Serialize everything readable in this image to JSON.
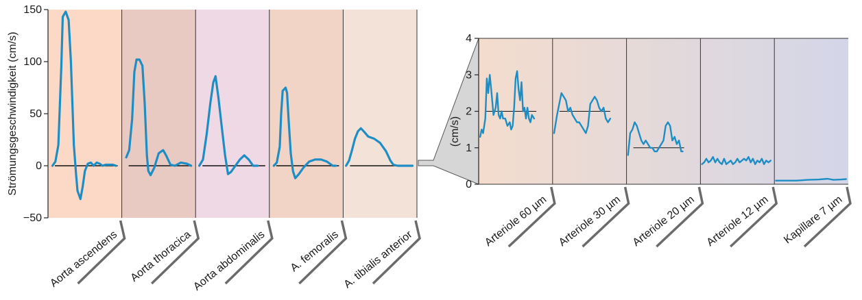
{
  "colors": {
    "trace": "#1e8dc4",
    "baseline": "#111111",
    "divider": "#333333",
    "label_bracket": "#6b6b6b",
    "zoom_wedge": "#d6d6d6",
    "panel_bg": [
      "#fbd9c6",
      "#e8cac2",
      "#efd9e4",
      "#f1d4c6",
      "#f3e2d8"
    ],
    "right_bg_start": "#f4dccd",
    "right_bg_end": "#d3d6e8"
  },
  "chart_data": [
    {
      "type": "line",
      "title": "",
      "ylabel": "Strömungsgeschwindigkeit (cm/s)",
      "ylim": [
        -50,
        150
      ],
      "yticks": [
        "150",
        "100",
        "50",
        "0",
        "−50"
      ],
      "ytick_values": [
        150,
        100,
        50,
        0,
        -50
      ],
      "grid": false,
      "x_unit": "fraction of panel width",
      "panels": [
        {
          "label": "Aorta ascendens",
          "points": [
            [
              0.06,
              0
            ],
            [
              0.1,
              4
            ],
            [
              0.14,
              20
            ],
            [
              0.18,
              95
            ],
            [
              0.2,
              143
            ],
            [
              0.24,
              148
            ],
            [
              0.28,
              140
            ],
            [
              0.31,
              100
            ],
            [
              0.35,
              20
            ],
            [
              0.38,
              -8
            ],
            [
              0.4,
              -24
            ],
            [
              0.44,
              -32
            ],
            [
              0.47,
              -20
            ],
            [
              0.5,
              -5
            ],
            [
              0.54,
              2
            ],
            [
              0.58,
              3
            ],
            [
              0.62,
              0
            ],
            [
              0.66,
              3
            ],
            [
              0.7,
              2
            ],
            [
              0.74,
              0
            ],
            [
              0.78,
              1
            ],
            [
              0.82,
              1
            ],
            [
              0.88,
              1
            ],
            [
              0.92,
              0
            ]
          ]
        },
        {
          "label": "Aorta thoracica",
          "points": [
            [
              0.06,
              8
            ],
            [
              0.1,
              15
            ],
            [
              0.14,
              45
            ],
            [
              0.17,
              90
            ],
            [
              0.2,
              102
            ],
            [
              0.24,
              102
            ],
            [
              0.28,
              96
            ],
            [
              0.31,
              60
            ],
            [
              0.34,
              10
            ],
            [
              0.36,
              -5
            ],
            [
              0.39,
              -9
            ],
            [
              0.44,
              -2
            ],
            [
              0.5,
              12
            ],
            [
              0.56,
              15
            ],
            [
              0.6,
              10
            ],
            [
              0.66,
              1
            ],
            [
              0.72,
              0
            ],
            [
              0.8,
              3
            ],
            [
              0.88,
              2
            ],
            [
              0.94,
              0
            ]
          ]
        },
        {
          "label": "Aorta abdominalis",
          "points": [
            [
              0.05,
              0
            ],
            [
              0.1,
              6
            ],
            [
              0.15,
              30
            ],
            [
              0.2,
              60
            ],
            [
              0.24,
              80
            ],
            [
              0.27,
              86
            ],
            [
              0.31,
              65
            ],
            [
              0.35,
              40
            ],
            [
              0.4,
              10
            ],
            [
              0.44,
              -8
            ],
            [
              0.48,
              -6
            ],
            [
              0.54,
              0
            ],
            [
              0.6,
              6
            ],
            [
              0.66,
              10
            ],
            [
              0.72,
              6
            ],
            [
              0.78,
              0
            ],
            [
              0.84,
              0
            ]
          ]
        },
        {
          "label": "A. femoralis",
          "points": [
            [
              0.06,
              0
            ],
            [
              0.1,
              3
            ],
            [
              0.14,
              18
            ],
            [
              0.16,
              50
            ],
            [
              0.18,
              72
            ],
            [
              0.22,
              75
            ],
            [
              0.24,
              70
            ],
            [
              0.26,
              45
            ],
            [
              0.29,
              12
            ],
            [
              0.32,
              -5
            ],
            [
              0.35,
              -12
            ],
            [
              0.4,
              -8
            ],
            [
              0.46,
              -2
            ],
            [
              0.54,
              4
            ],
            [
              0.62,
              6
            ],
            [
              0.7,
              6
            ],
            [
              0.78,
              4
            ],
            [
              0.86,
              0
            ],
            [
              0.9,
              0
            ]
          ]
        },
        {
          "label": "A. tibialis anterior",
          "points": [
            [
              0.04,
              0
            ],
            [
              0.08,
              5
            ],
            [
              0.12,
              15
            ],
            [
              0.16,
              26
            ],
            [
              0.2,
              33
            ],
            [
              0.24,
              36
            ],
            [
              0.28,
              33
            ],
            [
              0.34,
              28
            ],
            [
              0.42,
              26
            ],
            [
              0.5,
              22
            ],
            [
              0.58,
              14
            ],
            [
              0.64,
              5
            ],
            [
              0.68,
              1
            ],
            [
              0.74,
              0
            ],
            [
              0.86,
              0
            ],
            [
              0.94,
              0
            ]
          ]
        }
      ]
    },
    {
      "type": "line",
      "title": "",
      "ylabel": "(cm/s)",
      "ylim": [
        0,
        4
      ],
      "yticks": [
        "4",
        "3",
        "2",
        "1",
        "0"
      ],
      "ytick_values": [
        4,
        3,
        2,
        1,
        0
      ],
      "grid": false,
      "x_unit": "fraction of panel width",
      "panels": [
        {
          "label": "Arteriole 60 µm",
          "mean": 2.0,
          "points": [
            [
              0.02,
              1.3
            ],
            [
              0.04,
              1.5
            ],
            [
              0.06,
              1.4
            ],
            [
              0.09,
              1.8
            ],
            [
              0.11,
              2.9
            ],
            [
              0.13,
              2.5
            ],
            [
              0.15,
              3.0
            ],
            [
              0.17,
              2.6
            ],
            [
              0.2,
              1.9
            ],
            [
              0.23,
              2.1
            ],
            [
              0.25,
              2.5
            ],
            [
              0.27,
              1.9
            ],
            [
              0.29,
              1.8
            ],
            [
              0.31,
              2.0
            ],
            [
              0.33,
              1.8
            ],
            [
              0.36,
              1.8
            ],
            [
              0.39,
              1.6
            ],
            [
              0.42,
              1.7
            ],
            [
              0.44,
              1.5
            ],
            [
              0.46,
              1.6
            ],
            [
              0.48,
              2.1
            ],
            [
              0.5,
              2.9
            ],
            [
              0.52,
              3.1
            ],
            [
              0.54,
              2.6
            ],
            [
              0.56,
              2.3
            ],
            [
              0.58,
              2.8
            ],
            [
              0.6,
              2.0
            ],
            [
              0.62,
              2.1
            ],
            [
              0.64,
              1.8
            ],
            [
              0.66,
              2.1
            ],
            [
              0.68,
              1.8
            ],
            [
              0.7,
              1.7
            ],
            [
              0.72,
              1.9
            ],
            [
              0.75,
              1.8
            ]
          ]
        },
        {
          "label": "Arteriole 30 µm",
          "mean": 2.0,
          "points": [
            [
              0.02,
              1.4
            ],
            [
              0.06,
              1.9
            ],
            [
              0.09,
              2.2
            ],
            [
              0.12,
              2.5
            ],
            [
              0.15,
              2.4
            ],
            [
              0.18,
              2.3
            ],
            [
              0.21,
              2.0
            ],
            [
              0.24,
              2.1
            ],
            [
              0.27,
              1.9
            ],
            [
              0.3,
              1.8
            ],
            [
              0.33,
              1.7
            ],
            [
              0.36,
              1.7
            ],
            [
              0.39,
              1.6
            ],
            [
              0.42,
              1.5
            ],
            [
              0.45,
              1.4
            ],
            [
              0.48,
              1.6
            ],
            [
              0.51,
              2.2
            ],
            [
              0.54,
              2.3
            ],
            [
              0.57,
              2.4
            ],
            [
              0.6,
              2.3
            ],
            [
              0.63,
              2.1
            ],
            [
              0.66,
              2.0
            ],
            [
              0.69,
              2.1
            ],
            [
              0.72,
              1.8
            ],
            [
              0.75,
              1.7
            ],
            [
              0.78,
              1.8
            ]
          ]
        },
        {
          "label": "Arteriole 20 µm",
          "mean": 1.0,
          "points": [
            [
              0.02,
              0.8
            ],
            [
              0.05,
              1.4
            ],
            [
              0.08,
              1.5
            ],
            [
              0.11,
              1.7
            ],
            [
              0.14,
              1.6
            ],
            [
              0.17,
              1.4
            ],
            [
              0.2,
              1.2
            ],
            [
              0.23,
              1.1
            ],
            [
              0.26,
              1.2
            ],
            [
              0.29,
              1.1
            ],
            [
              0.32,
              1.0
            ],
            [
              0.35,
              1.0
            ],
            [
              0.38,
              0.9
            ],
            [
              0.41,
              0.9
            ],
            [
              0.44,
              1.0
            ],
            [
              0.47,
              1.1
            ],
            [
              0.5,
              1.2
            ],
            [
              0.53,
              1.6
            ],
            [
              0.56,
              1.7
            ],
            [
              0.59,
              1.6
            ],
            [
              0.62,
              1.2
            ],
            [
              0.65,
              1.3
            ],
            [
              0.68,
              1.1
            ],
            [
              0.71,
              1.2
            ],
            [
              0.74,
              0.9
            ],
            [
              0.76,
              0.9
            ]
          ]
        },
        {
          "label": "Arteriole 12 µm",
          "mean": null,
          "points": [
            [
              0.02,
              0.55
            ],
            [
              0.05,
              0.6
            ],
            [
              0.08,
              0.7
            ],
            [
              0.11,
              0.6
            ],
            [
              0.14,
              0.65
            ],
            [
              0.17,
              0.75
            ],
            [
              0.2,
              0.6
            ],
            [
              0.23,
              0.7
            ],
            [
              0.26,
              0.6
            ],
            [
              0.29,
              0.55
            ],
            [
              0.32,
              0.7
            ],
            [
              0.35,
              0.55
            ],
            [
              0.38,
              0.6
            ],
            [
              0.41,
              0.65
            ],
            [
              0.44,
              0.55
            ],
            [
              0.47,
              0.6
            ],
            [
              0.5,
              0.7
            ],
            [
              0.53,
              0.6
            ],
            [
              0.56,
              0.65
            ],
            [
              0.59,
              0.7
            ],
            [
              0.62,
              0.65
            ],
            [
              0.65,
              0.75
            ],
            [
              0.68,
              0.6
            ],
            [
              0.71,
              0.7
            ],
            [
              0.74,
              0.55
            ],
            [
              0.77,
              0.65
            ],
            [
              0.8,
              0.6
            ],
            [
              0.83,
              0.7
            ],
            [
              0.86,
              0.55
            ],
            [
              0.89,
              0.65
            ],
            [
              0.92,
              0.6
            ],
            [
              0.95,
              0.65
            ]
          ]
        },
        {
          "label": "Kapillare 7 µm",
          "mean": null,
          "points": [
            [
              0.02,
              0.1
            ],
            [
              0.15,
              0.1
            ],
            [
              0.3,
              0.1
            ],
            [
              0.45,
              0.12
            ],
            [
              0.6,
              0.13
            ],
            [
              0.72,
              0.15
            ],
            [
              0.8,
              0.12
            ],
            [
              0.9,
              0.13
            ],
            [
              0.97,
              0.14
            ]
          ]
        }
      ]
    }
  ]
}
